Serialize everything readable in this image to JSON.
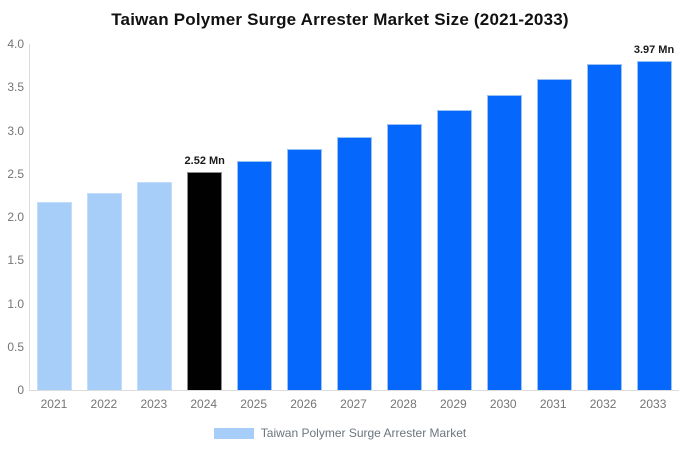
{
  "title": "Taiwan Polymer Surge Arrester Market Size (2021-2033)",
  "legend": {
    "label": "Taiwan Polymer Surge Arrester Market",
    "swatch_color": "#a6cef9"
  },
  "chart_data": {
    "type": "bar",
    "title": "Taiwan Polymer Surge Arrester Market Size (2021-2033)",
    "categories": [
      "2021",
      "2022",
      "2023",
      "2024",
      "2025",
      "2026",
      "2027",
      "2028",
      "2029",
      "2030",
      "2031",
      "2032",
      "2033"
    ],
    "values": [
      2.17,
      2.28,
      2.4,
      2.52,
      2.65,
      2.79,
      2.93,
      3.08,
      3.24,
      3.41,
      3.59,
      3.77,
      3.97
    ],
    "unit": "Mn",
    "xlabel": "",
    "ylabel": "",
    "ylim": [
      0,
      4.0
    ],
    "yticks": [
      "4.0",
      "3.5",
      "3.0",
      "2.5",
      "2.0",
      "1.5",
      "1.0",
      "0.5",
      "0"
    ],
    "grid": false,
    "legend_position": "bottom",
    "legend_entries": [
      "Taiwan Polymer Surge Arrester Market"
    ],
    "annotations": [
      {
        "index": 3,
        "label": "2.52 Mn"
      },
      {
        "index": 12,
        "label": "3.97 Mn"
      }
    ],
    "color_roles": [
      "historical",
      "historical",
      "historical",
      "current",
      "forecast",
      "forecast",
      "forecast",
      "forecast",
      "forecast",
      "forecast",
      "forecast",
      "forecast",
      "forecast"
    ],
    "colors": {
      "historical": {
        "fill": "#a6cef9",
        "edge": "#c2dcfb"
      },
      "current": {
        "fill": "#010101",
        "edge": "#8d8d8d"
      },
      "forecast": {
        "fill": "#0667fc",
        "edge": "#9cc1f3"
      }
    },
    "axis_line_color": "#dcdcdc",
    "axis_text_color": "#757575"
  }
}
